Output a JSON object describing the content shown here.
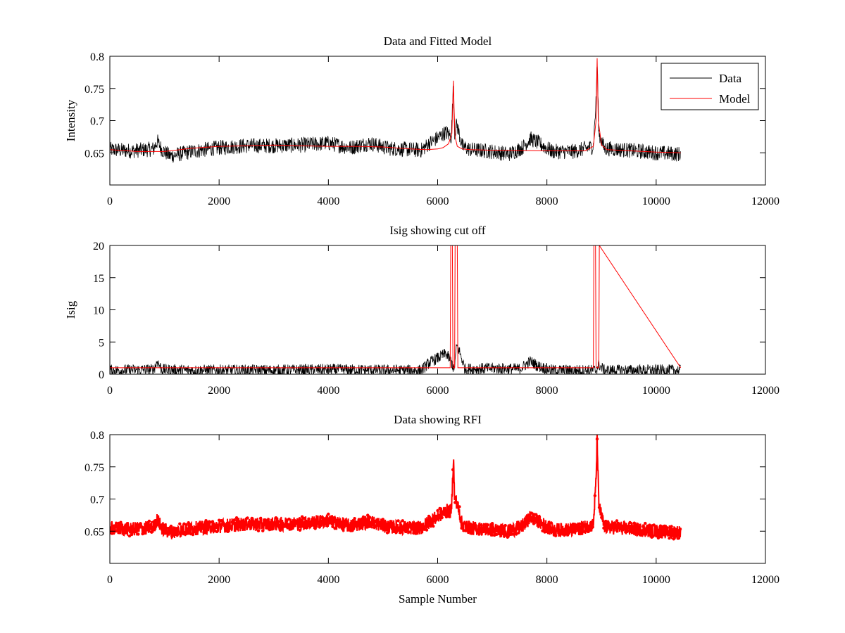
{
  "chart_data": [
    {
      "type": "line",
      "title": "Data and Fitted Model",
      "xlabel": "",
      "ylabel": "Intensity",
      "xlim": [
        0,
        12000
      ],
      "ylim": [
        0.6,
        0.8
      ],
      "xticks": [
        "0",
        "2000",
        "4000",
        "6000",
        "8000",
        "10000",
        "12000"
      ],
      "yticks": [
        "0.65",
        "0.7",
        "0.75",
        "0.8"
      ],
      "grid": false,
      "legend_position": "top-right",
      "series": [
        {
          "name": "Data",
          "color": "#000000",
          "style": "noisy-line",
          "noise": 0.012,
          "x": [
            0,
            400,
            800,
            870,
            950,
            1100,
            1500,
            2000,
            2500,
            3000,
            3500,
            4000,
            4400,
            4750,
            5100,
            5500,
            5700,
            5850,
            6000,
            6150,
            6250,
            6290,
            6310,
            6350,
            6450,
            6600,
            7000,
            7300,
            7550,
            7700,
            7850,
            8100,
            8500,
            8850,
            8900,
            8920,
            8950,
            9050,
            9500,
            10000,
            10450
          ],
          "y": [
            0.655,
            0.653,
            0.656,
            0.668,
            0.655,
            0.645,
            0.652,
            0.658,
            0.661,
            0.661,
            0.662,
            0.665,
            0.658,
            0.665,
            0.657,
            0.655,
            0.654,
            0.665,
            0.673,
            0.682,
            0.675,
            0.76,
            0.68,
            0.695,
            0.66,
            0.655,
            0.652,
            0.648,
            0.658,
            0.672,
            0.665,
            0.652,
            0.652,
            0.66,
            0.73,
            0.795,
            0.68,
            0.657,
            0.654,
            0.65,
            0.648
          ]
        },
        {
          "name": "Model",
          "color": "#ff0000",
          "style": "line",
          "x": [
            0,
            500,
            1000,
            1500,
            2000,
            2500,
            3000,
            3500,
            4000,
            4500,
            5000,
            5500,
            5800,
            6000,
            6100,
            6200,
            6260,
            6290,
            6300,
            6320,
            6360,
            6450,
            6600,
            7000,
            8000,
            8700,
            8850,
            8900,
            8920,
            8940,
            9000,
            9100,
            10000,
            10450
          ],
          "y": [
            0.655,
            0.652,
            0.652,
            0.657,
            0.66,
            0.661,
            0.662,
            0.661,
            0.66,
            0.66,
            0.659,
            0.656,
            0.655,
            0.656,
            0.658,
            0.664,
            0.68,
            0.762,
            0.72,
            0.675,
            0.66,
            0.656,
            0.655,
            0.654,
            0.653,
            0.653,
            0.66,
            0.7,
            0.797,
            0.7,
            0.662,
            0.655,
            0.651,
            0.65
          ]
        }
      ]
    },
    {
      "type": "line",
      "title": "Isig showing cut off",
      "xlabel": "",
      "ylabel": "Isig",
      "xlim": [
        0,
        12000
      ],
      "ylim": [
        0,
        20
      ],
      "xticks": [
        "0",
        "2000",
        "4000",
        "6000",
        "8000",
        "10000",
        "12000"
      ],
      "yticks": [
        "0",
        "5",
        "10",
        "15",
        "20"
      ],
      "grid": false,
      "series": [
        {
          "color": "#000000",
          "style": "noisy-line",
          "noise": 0.9,
          "x": [
            0,
            800,
            870,
            950,
            1500,
            3000,
            4000,
            5000,
            5700,
            5850,
            6000,
            6150,
            6250,
            6300,
            6350,
            6400,
            6500,
            7000,
            7500,
            7700,
            7850,
            8100,
            8900,
            8950,
            9050,
            10450
          ],
          "y": [
            0.6,
            0.7,
            2.0,
            0.7,
            0.6,
            0.6,
            0.7,
            0.6,
            0.6,
            1.8,
            2.5,
            3.2,
            2.0,
            0.5,
            4.5,
            3.5,
            0.8,
            0.9,
            0.8,
            2.0,
            1.2,
            0.6,
            0.6,
            1.5,
            0.6,
            0.6
          ]
        },
        {
          "color": "#ff0000",
          "style": "line",
          "x": [
            0,
            6230,
            6240,
            6270,
            6280,
            6310,
            6320,
            6360,
            6370,
            8850,
            8860,
            8890,
            8900,
            8950,
            8960,
            10450
          ],
          "y": [
            1,
            1,
            20,
            20,
            1,
            1,
            20,
            20,
            1,
            1,
            20,
            20,
            1,
            1,
            20,
            1
          ]
        }
      ]
    },
    {
      "type": "scatter",
      "title": "Data showing RFI",
      "xlabel": "Sample Number",
      "ylabel": "",
      "xlim": [
        0,
        12000
      ],
      "ylim": [
        0.6,
        0.8
      ],
      "xticks": [
        "0",
        "2000",
        "4000",
        "6000",
        "8000",
        "10000",
        "12000"
      ],
      "yticks": [
        "0.65",
        "0.7",
        "0.75",
        "0.8"
      ],
      "grid": false,
      "series": [
        {
          "color": "#ff0000",
          "style": "markers",
          "noise": 0.011,
          "x": [
            0,
            400,
            800,
            870,
            950,
            1100,
            1500,
            2000,
            2500,
            3000,
            3500,
            4000,
            4400,
            4750,
            5100,
            5500,
            5700,
            5850,
            6000,
            6150,
            6250,
            6290,
            6310,
            6350,
            6450,
            6600,
            7000,
            7300,
            7550,
            7700,
            7850,
            8100,
            8500,
            8850,
            8900,
            8920,
            8950,
            9050,
            9500,
            10000,
            10450
          ],
          "y": [
            0.655,
            0.653,
            0.656,
            0.668,
            0.655,
            0.648,
            0.654,
            0.658,
            0.661,
            0.661,
            0.662,
            0.666,
            0.658,
            0.665,
            0.657,
            0.655,
            0.655,
            0.665,
            0.672,
            0.682,
            0.68,
            0.762,
            0.7,
            0.695,
            0.66,
            0.655,
            0.652,
            0.65,
            0.658,
            0.672,
            0.665,
            0.652,
            0.652,
            0.66,
            0.73,
            0.792,
            0.69,
            0.657,
            0.654,
            0.65,
            0.648
          ]
        }
      ]
    }
  ]
}
